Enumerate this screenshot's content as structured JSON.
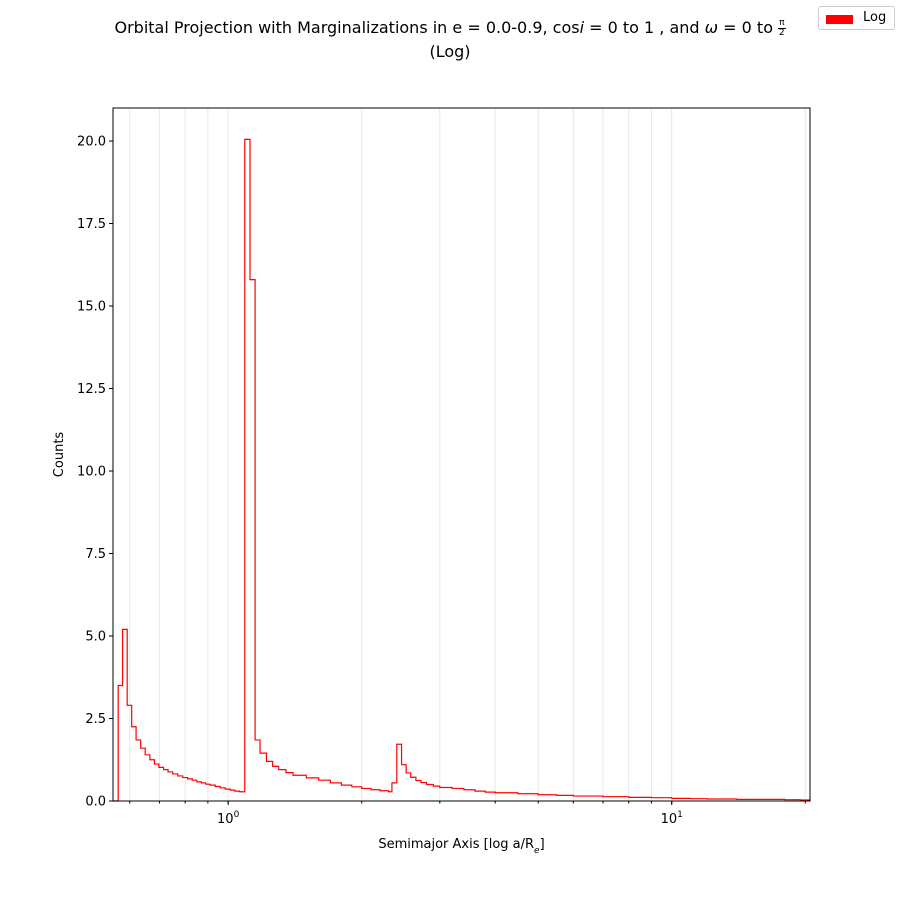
{
  "title": {
    "line1_prefix": "Orbital Projection with Marginalizations in e = 0.0-0.9, cos",
    "line1_i": "i",
    "line1_mid": " = 0 to 1 , and ",
    "line1_omega": "ω",
    "line1_suffix": " = 0 to ",
    "frac_num": "π",
    "frac_den": "2",
    "line2": "(Log)"
  },
  "legend": {
    "label": "Log",
    "color": "#ff0000"
  },
  "colors": {
    "line": "#ff0000",
    "grid": "#e8e8e8",
    "axis": "#000000"
  },
  "chart_data": {
    "type": "histogram-step",
    "title": "Orbital Projection with Marginalizations in e = 0.0-0.9, cos i = 0 to 1 , and ω = 0 to π/2 (Log)",
    "xlabel_text": "Semimajor Axis [log a/R",
    "xlabel_sub": "e",
    "xlabel_close": "]",
    "ylabel": "Counts",
    "xscale": "log",
    "xlim": [
      0.55,
      20.5
    ],
    "ylim": [
      0,
      21
    ],
    "xticks": [
      {
        "value": 1,
        "base": "10",
        "exp": "0"
      },
      {
        "value": 10,
        "base": "10",
        "exp": "1"
      }
    ],
    "yticks": [
      "0.0",
      "2.5",
      "5.0",
      "7.5",
      "10.0",
      "12.5",
      "15.0",
      "17.5",
      "20.0"
    ],
    "grid": "x-minor",
    "legend_position": "top-right",
    "series": [
      {
        "name": "Log",
        "color": "#ff0000",
        "bin_edges": [
          0.55,
          0.565,
          0.578,
          0.592,
          0.606,
          0.62,
          0.635,
          0.65,
          0.666,
          0.682,
          0.698,
          0.715,
          0.732,
          0.75,
          0.77,
          0.79,
          0.81,
          0.83,
          0.85,
          0.87,
          0.89,
          0.91,
          0.935,
          0.96,
          0.985,
          1.01,
          1.035,
          1.06,
          1.09,
          1.12,
          1.15,
          1.18,
          1.22,
          1.26,
          1.3,
          1.35,
          1.4,
          1.5,
          1.6,
          1.7,
          1.8,
          1.9,
          2.0,
          2.1,
          2.2,
          2.3,
          2.34,
          2.4,
          2.46,
          2.52,
          2.58,
          2.65,
          2.72,
          2.8,
          2.9,
          3.0,
          3.2,
          3.4,
          3.6,
          3.8,
          4.0,
          4.5,
          5.0,
          5.5,
          6.0,
          7.0,
          8.0,
          9.0,
          10.0,
          11.0,
          12.0,
          14.0,
          16.0,
          18.0,
          19.5,
          20.5
        ],
        "counts": [
          0.0,
          3.5,
          5.2,
          2.9,
          2.25,
          1.85,
          1.6,
          1.4,
          1.25,
          1.12,
          1.02,
          0.95,
          0.88,
          0.82,
          0.76,
          0.71,
          0.67,
          0.63,
          0.58,
          0.55,
          0.51,
          0.48,
          0.44,
          0.4,
          0.36,
          0.33,
          0.3,
          0.28,
          20.05,
          15.8,
          1.85,
          1.45,
          1.2,
          1.05,
          0.95,
          0.86,
          0.78,
          0.7,
          0.63,
          0.55,
          0.48,
          0.43,
          0.38,
          0.34,
          0.31,
          0.28,
          0.55,
          1.72,
          1.1,
          0.85,
          0.72,
          0.62,
          0.56,
          0.5,
          0.45,
          0.41,
          0.38,
          0.34,
          0.3,
          0.27,
          0.25,
          0.22,
          0.19,
          0.17,
          0.15,
          0.13,
          0.11,
          0.1,
          0.08,
          0.07,
          0.06,
          0.05,
          0.05,
          0.04,
          0.03
        ]
      }
    ]
  }
}
